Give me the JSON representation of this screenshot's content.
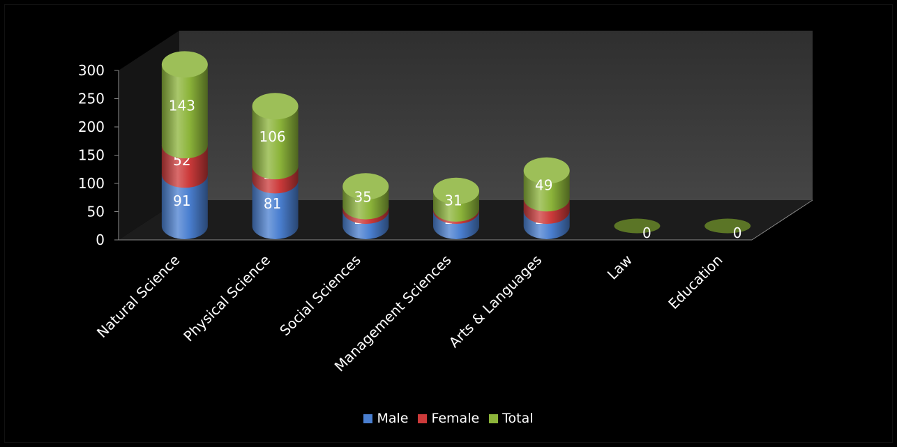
{
  "chart_data": {
    "type": "bar",
    "stacked": true,
    "style": "3d-cylinder",
    "categories": [
      "Natural Science",
      "Physical Science",
      "Social Sciences",
      "Management Sciences",
      "Arts & Languages",
      "Law",
      "Education"
    ],
    "series": [
      {
        "name": "Male",
        "color": "#4a7fd0",
        "values": [
          91,
          81,
          27,
          27,
          27,
          0,
          0
        ]
      },
      {
        "name": "Female",
        "color": "#cc3a3a",
        "values": [
          52,
          25,
          8,
          4,
          22,
          0,
          0
        ]
      },
      {
        "name": "Total",
        "color": "#8cb43a",
        "values": [
          143,
          106,
          35,
          31,
          49,
          0,
          0
        ]
      }
    ],
    "yticks": [
      0,
      50,
      100,
      150,
      200,
      250,
      300
    ],
    "ylim": [
      0,
      300
    ],
    "title": "",
    "xlabel": "",
    "ylabel": "",
    "grid": false,
    "legend_position": "bottom",
    "background": "#000000",
    "wall_color": "#3a3a3a",
    "text_color": "#ffffff"
  }
}
